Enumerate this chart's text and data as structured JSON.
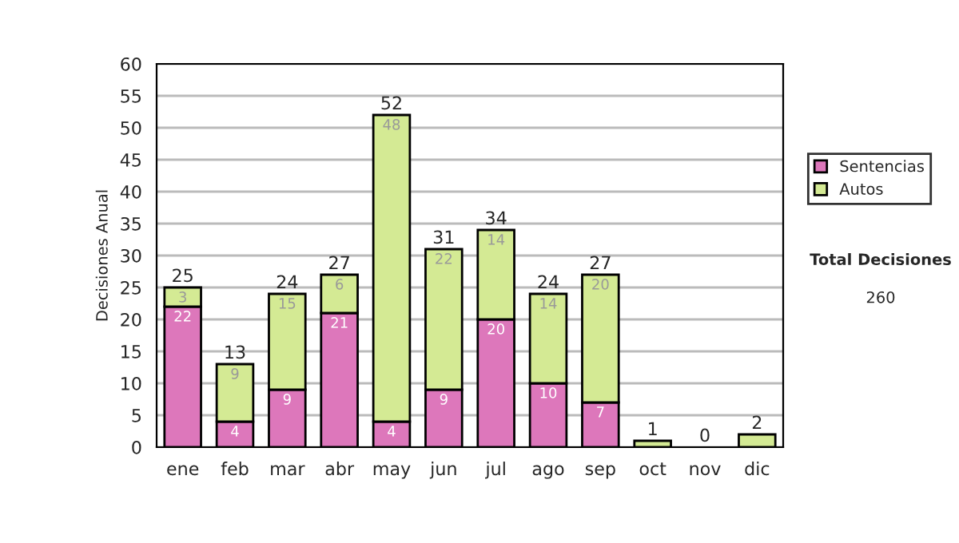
{
  "chart_data": {
    "type": "bar",
    "stacked": true,
    "ylabel": "Decisiones Anual",
    "categories": [
      "ene",
      "feb",
      "mar",
      "abr",
      "may",
      "jun",
      "jul",
      "ago",
      "sep",
      "oct",
      "nov",
      "dic"
    ],
    "series": [
      {
        "name": "Sentencias",
        "color": "#dd77bb",
        "values": [
          22,
          4,
          9,
          21,
          4,
          9,
          20,
          10,
          7,
          0,
          0,
          0
        ],
        "value_labels": [
          "22",
          "4",
          "9",
          "21",
          "4",
          "9",
          "20",
          "10",
          "7",
          null,
          null,
          null
        ]
      },
      {
        "name": "Autos",
        "color": "#d4ea94",
        "values": [
          3,
          9,
          15,
          6,
          48,
          22,
          14,
          14,
          20,
          1,
          0,
          2
        ],
        "value_labels": [
          "3",
          "9",
          "15",
          "6",
          "48",
          "22",
          "14",
          "14",
          "20",
          null,
          null,
          null
        ]
      }
    ],
    "totals": [
      "25",
      "13",
      "24",
      "27",
      "52",
      "31",
      "34",
      "24",
      "27",
      "1",
      "0",
      "2"
    ],
    "ylim": [
      0,
      60
    ],
    "yticks": [
      0,
      5,
      10,
      15,
      20,
      25,
      30,
      35,
      40,
      45,
      50,
      55,
      60
    ],
    "grid": "y",
    "legend": "right",
    "annotations": [
      "Total Decisiones",
      "260"
    ]
  }
}
